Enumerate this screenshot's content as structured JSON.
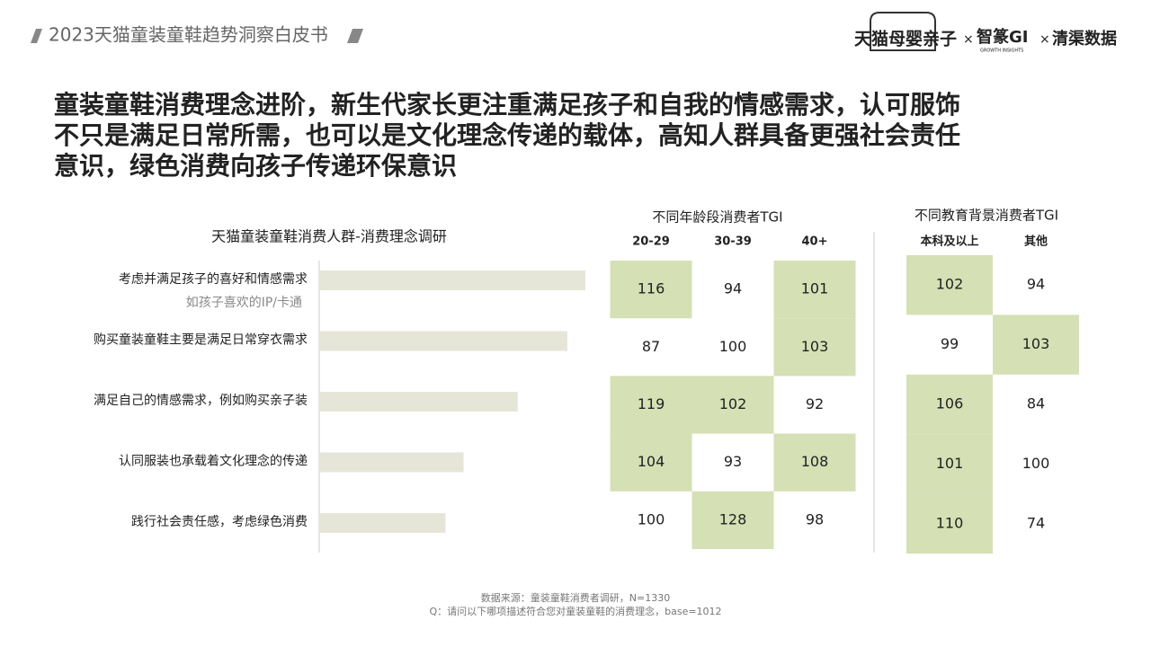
{
  "header": {
    "report": "2023天猫童装童鞋趋势洞察白皮书",
    "brand_1": "天猫母婴亲子",
    "brand_2": "智篆GI",
    "brand_2_sub": "GROWTH INSIGHTS",
    "brand_3": "清渠数据",
    "separator": "×"
  },
  "headline": [
    "童装童鞋消费理念进阶，新生代家长更注重满足孩子和自我的情感需求，认可服饰",
    "不只是满足日常所需，也可以是文化理念传递的载体，高知人群具备更强社会责任",
    "意识，绿色消费向孩子传递环保意识"
  ],
  "chart_data": {
    "type": "hbar",
    "title": "天猫童装童鞋消费人群-消费理念调研",
    "categories": [
      "考虑并满足孩子的喜好和情感需求",
      "购买童装童鞋主要是满足日常穿衣需求",
      "满足自己的情感需求，例如购买亲子装",
      "认同服装也承载着文化理念的传递",
      "践行社会责任感，考虑绿色消费"
    ],
    "annotation": "如孩子喜欢的IP/卡通",
    "values": [
      59,
      55,
      44,
      32,
      28
    ],
    "color": "#e6e6d8"
  },
  "tables": [
    {
      "title": "不同年龄段消费者TGI",
      "columns": [
        "20-29",
        "30-39",
        "40+"
      ],
      "rows": [
        [
          116,
          94,
          101
        ],
        [
          87,
          100,
          103
        ],
        [
          119,
          102,
          92
        ],
        [
          104,
          93,
          108
        ],
        [
          100,
          128,
          98
        ]
      ]
    },
    {
      "title": "不同教育背景消费者TGI",
      "columns": [
        "本科及以上",
        "其他"
      ],
      "rows": [
        [
          102,
          94
        ],
        [
          99,
          103
        ],
        [
          106,
          84
        ],
        [
          101,
          100
        ],
        [
          110,
          74
        ]
      ]
    }
  ],
  "highlight_above": 100,
  "highlight_color": "#d5e0b5",
  "footer": [
    "数据来源：童装童鞋消费者调研，N=1330",
    "Q：请问以下哪项描述符合您对童装童鞋的消费理念，base=1012"
  ]
}
